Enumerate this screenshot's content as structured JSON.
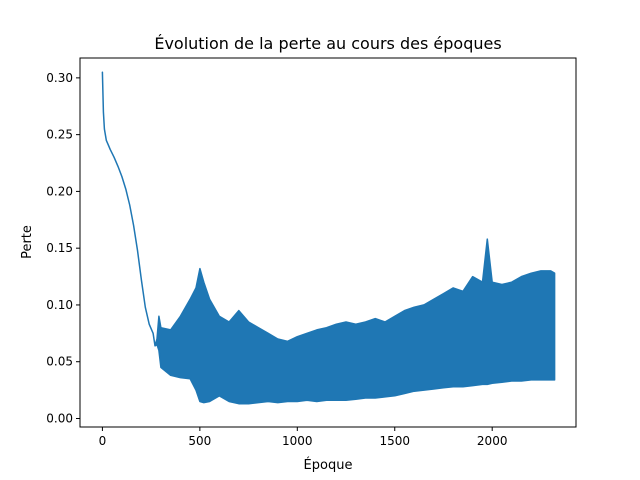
{
  "chart_data": {
    "type": "line",
    "title": "Évolution de la perte au cours des époques",
    "xlabel": "Époque",
    "ylabel": "Perte",
    "xlim": [
      -115,
      2430
    ],
    "ylim": [
      -0.0075,
      0.3175
    ],
    "xticks": [
      0,
      500,
      1000,
      1500,
      2000
    ],
    "xtick_labels": [
      "0",
      "500",
      "1000",
      "1500",
      "2000"
    ],
    "yticks": [
      0.0,
      0.05,
      0.1,
      0.15,
      0.2,
      0.25,
      0.3
    ],
    "ytick_labels": [
      "0.00",
      "0.05",
      "0.10",
      "0.15",
      "0.20",
      "0.25",
      "0.30"
    ],
    "grid": false,
    "legend": "none",
    "series_color": "#1f77b4",
    "series": [
      {
        "x": [
          0,
          5,
          10,
          20,
          30,
          40,
          60,
          80,
          100,
          120,
          140,
          160,
          180,
          200,
          220,
          240,
          260,
          270,
          280,
          290,
          300,
          350,
          400,
          450,
          480,
          500,
          520,
          550,
          600,
          650,
          700,
          750,
          800,
          850,
          900,
          950,
          1000,
          1050,
          1100,
          1150,
          1200,
          1250,
          1300,
          1350,
          1400,
          1450,
          1500,
          1550,
          1600,
          1650,
          1700,
          1750,
          1800,
          1850,
          1900,
          1950,
          1975,
          2000,
          2050,
          2100,
          2150,
          2200,
          2250,
          2300,
          2320
        ],
        "y": [
          0.305,
          0.27,
          0.255,
          0.245,
          0.241,
          0.237,
          0.23,
          0.222,
          0.213,
          0.202,
          0.188,
          0.17,
          0.148,
          0.122,
          0.098,
          0.083,
          0.075,
          0.064,
          0.07,
          0.09,
          0.08,
          0.078,
          0.09,
          0.105,
          0.115,
          0.132,
          0.12,
          0.105,
          0.09,
          0.085,
          0.095,
          0.085,
          0.08,
          0.075,
          0.07,
          0.068,
          0.072,
          0.075,
          0.078,
          0.08,
          0.083,
          0.085,
          0.083,
          0.085,
          0.088,
          0.085,
          0.09,
          0.095,
          0.098,
          0.1,
          0.105,
          0.11,
          0.115,
          0.112,
          0.125,
          0.12,
          0.158,
          0.12,
          0.118,
          0.12,
          0.125,
          0.128,
          0.13,
          0.13,
          0.128
        ],
        "y_low": [
          0.305,
          0.27,
          0.255,
          0.245,
          0.241,
          0.237,
          0.23,
          0.222,
          0.213,
          0.202,
          0.188,
          0.17,
          0.148,
          0.122,
          0.098,
          0.083,
          0.075,
          0.064,
          0.065,
          0.06,
          0.045,
          0.038,
          0.036,
          0.035,
          0.025,
          0.015,
          0.014,
          0.015,
          0.02,
          0.015,
          0.013,
          0.013,
          0.014,
          0.015,
          0.014,
          0.015,
          0.015,
          0.016,
          0.015,
          0.016,
          0.016,
          0.016,
          0.017,
          0.018,
          0.018,
          0.019,
          0.02,
          0.022,
          0.024,
          0.025,
          0.026,
          0.027,
          0.028,
          0.028,
          0.029,
          0.03,
          0.03,
          0.031,
          0.032,
          0.033,
          0.033,
          0.034,
          0.034,
          0.034,
          0.034
        ]
      }
    ]
  }
}
